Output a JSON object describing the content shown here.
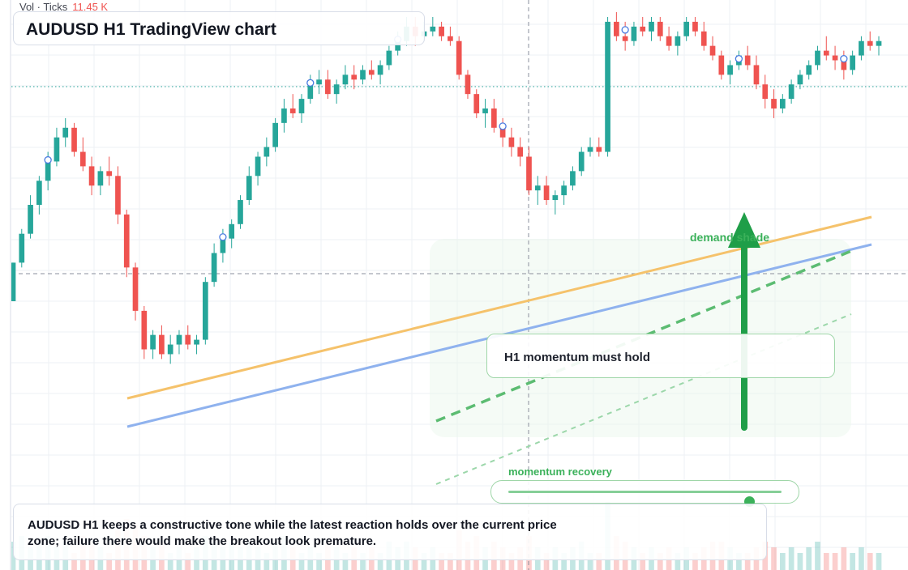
{
  "hud": {
    "vol_label": "Vol · Ticks",
    "vol_value": "11.45 K"
  },
  "title": "AUDUSD H1 TradingView chart",
  "callout": "H1 momentum must hold",
  "demand_label": "demand shade",
  "recovery": {
    "label": "momentum recovery",
    "level": 0.88
  },
  "summary": "AUDUSD H1 keeps a constructive tone while the latest reaction holds over the current price zone; failure there would make the breakout look premature.",
  "colors": {
    "up": "#26a69a",
    "down": "#ef5350",
    "accent_green": "#3bb15a",
    "support_orange": "#f5c26b",
    "support_blue": "#8fb2ee",
    "grid": "#eef0f4"
  },
  "chart_data": {
    "type": "candlestick",
    "title": "AUDUSD H1 TradingView chart",
    "price_range": [
      0,
      100
    ],
    "candles": [
      [
        40,
        48,
        40,
        48,
        5
      ],
      [
        48,
        55,
        47,
        54,
        6
      ],
      [
        54,
        62,
        53,
        60,
        4
      ],
      [
        60,
        66,
        58,
        65,
        5
      ],
      [
        65,
        71,
        63,
        69,
        6
      ],
      [
        69,
        76,
        68,
        74,
        4
      ],
      [
        74,
        78,
        72,
        76,
        5
      ],
      [
        76,
        77,
        70,
        71,
        3
      ],
      [
        71,
        74,
        67,
        68,
        6
      ],
      [
        68,
        70,
        62,
        64,
        5
      ],
      [
        64,
        68,
        62,
        67,
        4
      ],
      [
        67,
        70,
        64,
        66,
        3
      ],
      [
        66,
        68,
        56,
        58,
        7
      ],
      [
        58,
        59,
        45,
        47,
        9
      ],
      [
        47,
        48,
        36,
        38,
        8
      ],
      [
        38,
        39,
        28,
        30,
        6
      ],
      [
        30,
        34,
        28,
        33,
        4
      ],
      [
        33,
        35,
        28,
        29,
        5
      ],
      [
        29,
        33,
        27,
        31,
        3
      ],
      [
        31,
        34,
        29,
        33,
        4
      ],
      [
        33,
        35,
        30,
        31,
        3
      ],
      [
        31,
        33,
        29,
        32,
        4
      ],
      [
        32,
        45,
        31,
        44,
        6
      ],
      [
        44,
        52,
        43,
        50,
        5
      ],
      [
        50,
        55,
        48,
        53,
        4
      ],
      [
        53,
        57,
        51,
        56,
        5
      ],
      [
        56,
        62,
        55,
        61,
        4
      ],
      [
        61,
        68,
        60,
        66,
        5
      ],
      [
        66,
        71,
        64,
        70,
        4
      ],
      [
        70,
        74,
        68,
        72,
        3
      ],
      [
        72,
        78,
        71,
        77,
        5
      ],
      [
        77,
        82,
        75,
        80,
        6
      ],
      [
        80,
        83,
        78,
        79,
        4
      ],
      [
        79,
        83,
        77,
        82,
        3
      ],
      [
        82,
        87,
        81,
        85,
        4
      ],
      [
        85,
        88,
        83,
        86,
        3
      ],
      [
        86,
        88,
        82,
        83,
        5
      ],
      [
        83,
        86,
        81,
        85,
        4
      ],
      [
        85,
        89,
        84,
        87,
        3
      ],
      [
        87,
        89,
        84,
        86,
        4
      ],
      [
        86,
        89,
        85,
        88,
        3
      ],
      [
        88,
        90,
        86,
        87,
        4
      ],
      [
        87,
        90,
        85,
        89,
        3
      ],
      [
        89,
        93,
        88,
        92,
        5
      ],
      [
        92,
        96,
        91,
        94,
        4
      ],
      [
        94,
        99,
        93,
        97,
        5
      ],
      [
        97,
        99,
        93,
        95,
        4
      ],
      [
        95,
        98,
        94,
        96,
        3
      ],
      [
        96,
        99,
        95,
        97,
        4
      ],
      [
        97,
        98,
        94,
        95,
        3
      ],
      [
        95,
        97,
        93,
        94,
        3
      ],
      [
        94,
        95,
        86,
        87,
        7
      ],
      [
        87,
        88,
        82,
        83,
        5
      ],
      [
        83,
        84,
        78,
        79,
        6
      ],
      [
        79,
        82,
        76,
        80,
        4
      ],
      [
        80,
        82,
        75,
        76,
        5
      ],
      [
        76,
        78,
        72,
        74,
        4
      ],
      [
        74,
        76,
        70,
        72,
        3
      ],
      [
        72,
        74,
        68,
        70,
        4
      ],
      [
        70,
        72,
        62,
        63,
        6
      ],
      [
        63,
        66,
        60,
        64,
        4
      ],
      [
        64,
        66,
        60,
        61,
        3
      ],
      [
        61,
        63,
        58,
        62,
        4
      ],
      [
        62,
        65,
        60,
        64,
        3
      ],
      [
        64,
        68,
        63,
        67,
        4
      ],
      [
        67,
        72,
        66,
        71,
        5
      ],
      [
        71,
        74,
        70,
        72,
        3
      ],
      [
        72,
        74,
        70,
        71,
        3
      ],
      [
        71,
        99,
        70,
        98,
        12
      ],
      [
        98,
        100,
        94,
        95,
        6
      ],
      [
        95,
        98,
        92,
        94,
        5
      ],
      [
        94,
        98,
        93,
        97,
        4
      ],
      [
        97,
        99,
        95,
        96,
        3
      ],
      [
        96,
        99,
        94,
        98,
        4
      ],
      [
        98,
        99,
        94,
        95,
        3
      ],
      [
        95,
        97,
        92,
        93,
        4
      ],
      [
        93,
        96,
        91,
        95,
        3
      ],
      [
        95,
        99,
        94,
        98,
        4
      ],
      [
        98,
        99,
        95,
        96,
        3
      ],
      [
        96,
        98,
        92,
        93,
        4
      ],
      [
        93,
        95,
        90,
        91,
        5
      ],
      [
        91,
        92,
        86,
        87,
        5
      ],
      [
        87,
        90,
        85,
        89,
        4
      ],
      [
        89,
        92,
        88,
        91,
        3
      ],
      [
        91,
        93,
        88,
        89,
        3
      ],
      [
        89,
        91,
        84,
        85,
        4
      ],
      [
        85,
        87,
        80,
        82,
        5
      ],
      [
        82,
        84,
        78,
        80,
        4
      ],
      [
        80,
        83,
        79,
        82,
        3
      ],
      [
        82,
        86,
        81,
        85,
        4
      ],
      [
        85,
        88,
        84,
        87,
        3
      ],
      [
        87,
        90,
        86,
        89,
        4
      ],
      [
        89,
        93,
        88,
        92,
        5
      ],
      [
        92,
        95,
        90,
        91,
        3
      ],
      [
        91,
        93,
        88,
        90,
        3
      ],
      [
        90,
        92,
        86,
        88,
        4
      ],
      [
        88,
        92,
        87,
        91,
        3
      ],
      [
        91,
        95,
        90,
        94,
        4
      ],
      [
        94,
        96,
        92,
        93,
        3
      ],
      [
        93,
        95,
        91,
        94,
        3
      ]
    ]
  }
}
